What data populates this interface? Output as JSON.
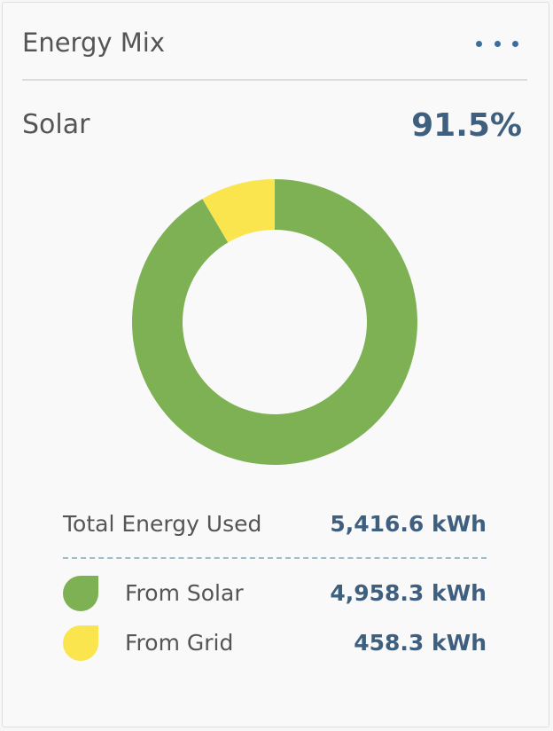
{
  "header": {
    "title": "Energy Mix",
    "menu_icon": "more-horizontal-icon"
  },
  "metric": {
    "label": "Solar",
    "value": "91.5%"
  },
  "colors": {
    "solar": "#7db153",
    "grid": "#fbe54e",
    "value_text": "#3f5f7f",
    "menu": "#3f6d9d"
  },
  "chart_data": {
    "type": "pie",
    "title": "",
    "categories": [
      "From Solar",
      "From Grid"
    ],
    "values": [
      4958.3,
      458.3
    ],
    "percent": [
      91.5,
      8.5
    ],
    "colors": [
      "#7db153",
      "#fbe54e"
    ],
    "donut": true,
    "start": "top",
    "direction": "clockwise"
  },
  "summary": {
    "total_label": "Total Energy Used",
    "total_value": "5,416.6 kWh",
    "rows": [
      {
        "label": "From Solar",
        "value": "4,958.3 kWh",
        "icon": "leaf-icon"
      },
      {
        "label": "From Grid",
        "value": "458.3 kWh",
        "icon": "leaf-icon"
      }
    ]
  }
}
